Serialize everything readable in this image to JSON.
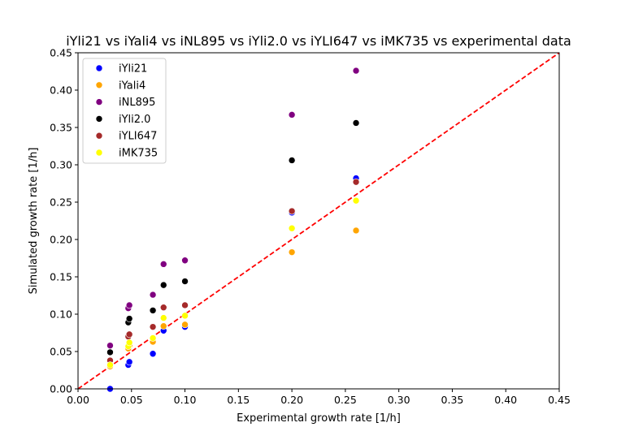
{
  "chart_data": {
    "type": "scatter",
    "title": "iYli21 vs iYali4 vs iNL895 vs iYli2.0 vs iYLI647 vs iMK735 vs experimental data",
    "xlabel": "Experimental growth rate [1/h]",
    "ylabel": "Simulated growth rate [1/h]",
    "xlim": [
      0.0,
      0.45
    ],
    "ylim": [
      0.0,
      0.45
    ],
    "xticks": [
      "0.00",
      "0.05",
      "0.10",
      "0.15",
      "0.20",
      "0.25",
      "0.30",
      "0.35",
      "0.40",
      "0.45"
    ],
    "yticks": [
      "0.00",
      "0.05",
      "0.10",
      "0.15",
      "0.20",
      "0.25",
      "0.30",
      "0.35",
      "0.40",
      "0.45"
    ],
    "grid": false,
    "legend_position": "top-left",
    "reference_line": {
      "x": [
        0.0,
        0.45
      ],
      "y": [
        0.0,
        0.45
      ],
      "color": "#ff0000",
      "style": "dashed"
    },
    "series": [
      {
        "name": "iYli21",
        "color": "#0000ff",
        "points": [
          [
            0.03,
            0.0
          ],
          [
            0.047,
            0.032
          ],
          [
            0.048,
            0.036
          ],
          [
            0.07,
            0.047
          ],
          [
            0.08,
            0.078
          ],
          [
            0.1,
            0.083
          ],
          [
            0.2,
            0.236
          ],
          [
            0.26,
            0.282
          ]
        ]
      },
      {
        "name": "iYali4",
        "color": "#ffa500",
        "points": [
          [
            0.03,
            0.03
          ],
          [
            0.047,
            0.054
          ],
          [
            0.048,
            0.058
          ],
          [
            0.07,
            0.063
          ],
          [
            0.08,
            0.084
          ],
          [
            0.1,
            0.086
          ],
          [
            0.2,
            0.183
          ],
          [
            0.26,
            0.212
          ]
        ]
      },
      {
        "name": "iNL895",
        "color": "#800080",
        "points": [
          [
            0.03,
            0.058
          ],
          [
            0.047,
            0.108
          ],
          [
            0.048,
            0.112
          ],
          [
            0.07,
            0.126
          ],
          [
            0.08,
            0.167
          ],
          [
            0.1,
            0.172
          ],
          [
            0.2,
            0.367
          ],
          [
            0.26,
            0.426
          ]
        ]
      },
      {
        "name": "iYli2.0",
        "color": "#000000",
        "points": [
          [
            0.03,
            0.049
          ],
          [
            0.047,
            0.089
          ],
          [
            0.048,
            0.094
          ],
          [
            0.07,
            0.105
          ],
          [
            0.08,
            0.139
          ],
          [
            0.1,
            0.144
          ],
          [
            0.2,
            0.306
          ],
          [
            0.26,
            0.356
          ]
        ]
      },
      {
        "name": "iYLI647",
        "color": "#a52a2a",
        "points": [
          [
            0.03,
            0.038
          ],
          [
            0.047,
            0.07
          ],
          [
            0.048,
            0.073
          ],
          [
            0.07,
            0.083
          ],
          [
            0.08,
            0.109
          ],
          [
            0.1,
            0.112
          ],
          [
            0.2,
            0.238
          ],
          [
            0.26,
            0.277
          ]
        ]
      },
      {
        "name": "iMK735",
        "color": "#ffff00",
        "points": [
          [
            0.03,
            0.032
          ],
          [
            0.047,
            0.057
          ],
          [
            0.048,
            0.062
          ],
          [
            0.07,
            0.068
          ],
          [
            0.08,
            0.095
          ],
          [
            0.1,
            0.098
          ],
          [
            0.2,
            0.215
          ],
          [
            0.26,
            0.252
          ]
        ]
      }
    ]
  }
}
